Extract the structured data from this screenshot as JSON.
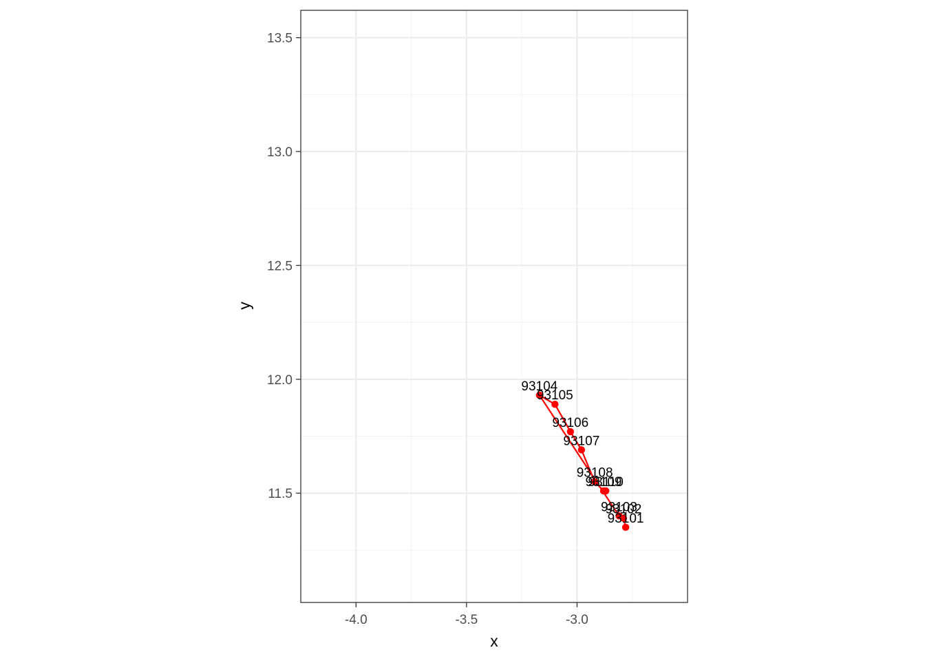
{
  "chart_data": {
    "type": "scatter",
    "title": "",
    "xlabel": "x",
    "ylabel": "y",
    "xlim": [
      -4.25,
      -2.5
    ],
    "ylim": [
      11.02,
      13.62
    ],
    "x_ticks": [
      -4.0,
      -3.5,
      -3.0
    ],
    "x_tick_labels": [
      "-4.0",
      "-3.5",
      "-3.0"
    ],
    "y_ticks": [
      11.5,
      12.0,
      12.5,
      13.0,
      13.5
    ],
    "y_tick_labels": [
      "11.5",
      "12.0",
      "12.5",
      "13.0",
      "13.5"
    ],
    "grid": true,
    "legend": "none",
    "series": [
      {
        "color": "#FF0000",
        "connected": true,
        "points": [
          {
            "label": "93101",
            "x": -2.78,
            "y": 11.35
          },
          {
            "label": "93102",
            "x": -2.79,
            "y": 11.39
          },
          {
            "label": "93103",
            "x": -2.81,
            "y": 11.4
          },
          {
            "label": "93104",
            "x": -3.17,
            "y": 11.93
          },
          {
            "label": "93105",
            "x": -3.1,
            "y": 11.89
          },
          {
            "label": "93106",
            "x": -3.03,
            "y": 11.77
          },
          {
            "label": "93107",
            "x": -2.98,
            "y": 11.69
          },
          {
            "label": "93108",
            "x": -2.92,
            "y": 11.55
          },
          {
            "label": "93109",
            "x": -2.88,
            "y": 11.51
          },
          {
            "label": "93110",
            "x": -2.87,
            "y": 11.51
          }
        ]
      }
    ]
  },
  "colors": {
    "series": "#FF0000",
    "panel_border": "#333333",
    "grid_major": "#EBEBEB",
    "grid_minor": "#F2F2F2",
    "tick_text": "#4D4D4D",
    "axis_title": "#000000"
  }
}
